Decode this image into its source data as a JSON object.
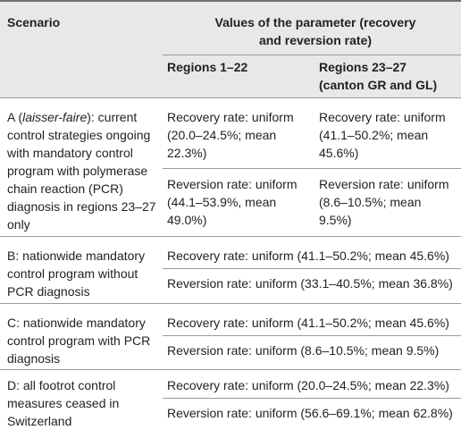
{
  "header": {
    "scenario_label": "Scenario",
    "values_label": "Values of the parameter (recovery\nand reversion rate)",
    "regions_a_label": "Regions 1–22",
    "regions_b_label": "Regions 23–27\n(canton GR and GL)"
  },
  "rows": [
    {
      "scenario_prefix": "A (",
      "scenario_italic": "laisser-faire",
      "scenario_suffix": "): current\ncontrol strategies ongoing\nwith mandatory control\nprogram with polymerase\nchain reaction (PCR)\ndiagnosis in regions 23–27\nonly",
      "recovery_a": "Recovery rate: uniform\n(20.0–24.5%; mean\n22.3%)",
      "recovery_b": "Recovery rate: uniform\n(41.1–50.2%; mean\n45.6%)",
      "reversion_a": "Reversion rate: uniform\n(44.1–53.9%, mean\n49.0%)",
      "reversion_b": "Reversion rate: uniform\n(8.6–10.5%; mean\n9.5%)"
    },
    {
      "scenario": "B: nationwide mandatory\ncontrol program without\nPCR diagnosis",
      "recovery": "Recovery rate: uniform (41.1–50.2%; mean 45.6%)",
      "reversion": "Reversion rate: uniform (33.1–40.5%; mean 36.8%)"
    },
    {
      "scenario": "C: nationwide mandatory\ncontrol program with PCR\ndiagnosis",
      "recovery": "Recovery rate: uniform (41.1–50.2%; mean 45.6%)",
      "reversion": "Reversion rate: uniform (8.6–10.5%; mean 9.5%)"
    },
    {
      "scenario": "D: all footrot control\nmeasures ceased in\nSwitzerland",
      "recovery": "Recovery rate: uniform (20.0–24.5%; mean 22.3%)",
      "reversion": "Reversion rate: uniform (56.6–69.1%; mean 62.8%)"
    }
  ]
}
